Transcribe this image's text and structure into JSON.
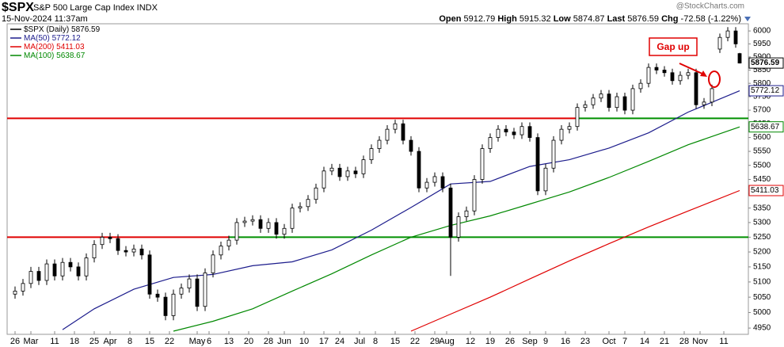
{
  "chart_data": {
    "type": "candlestick",
    "title": "$SPX",
    "subtitle": "S&P 500 Large Cap Index INDX",
    "date": "15-Nov-2024 11:37am",
    "watermark": "@StockCharts.com",
    "quote": {
      "labels": [
        "Open",
        "High",
        "Low",
        "Last",
        "Chg"
      ],
      "values": [
        5912.79,
        5915.32,
        5874.87,
        5876.59,
        -72.58
      ],
      "change_percent_label": "(-1.22%)"
    },
    "annotation": "Gap up",
    "log_scale": true,
    "grid": false,
    "xlim": [
      -2,
      185.2
    ],
    "ylim": [
      4930,
      6028
    ],
    "yticks": [
      4950,
      5000,
      5050,
      5100,
      5150,
      5200,
      5250,
      5300,
      5350,
      5400,
      5450,
      5500,
      5550,
      5600,
      5650,
      5700,
      5750,
      5800,
      5850,
      5900,
      5950,
      6000
    ],
    "xticks": [
      {
        "value": 0,
        "label": "26"
      },
      {
        "value": 4,
        "label": "Mar"
      },
      {
        "value": 10,
        "label": "11"
      },
      {
        "value": 15,
        "label": "18"
      },
      {
        "value": 20,
        "label": "25"
      },
      {
        "value": 24,
        "label": "Apr"
      },
      {
        "value": 29,
        "label": "8"
      },
      {
        "value": 34,
        "label": "15"
      },
      {
        "value": 39,
        "label": "22"
      },
      {
        "value": 46,
        "label": "May"
      },
      {
        "value": 49,
        "label": "6"
      },
      {
        "value": 54,
        "label": "13"
      },
      {
        "value": 59,
        "label": "20"
      },
      {
        "value": 64,
        "label": "28"
      },
      {
        "value": 68,
        "label": "Jun"
      },
      {
        "value": 73,
        "label": "10"
      },
      {
        "value": 78,
        "label": "17"
      },
      {
        "value": 82,
        "label": "24"
      },
      {
        "value": 87,
        "label": "Jul"
      },
      {
        "value": 91,
        "label": "8"
      },
      {
        "value": 96,
        "label": "15"
      },
      {
        "value": 101,
        "label": "22"
      },
      {
        "value": 106,
        "label": "29"
      },
      {
        "value": 109,
        "label": "Aug"
      },
      {
        "value": 115,
        "label": "12"
      },
      {
        "value": 120,
        "label": "19"
      },
      {
        "value": 125,
        "label": "26"
      },
      {
        "value": 130,
        "label": "Sep"
      },
      {
        "value": 134,
        "label": "9"
      },
      {
        "value": 139,
        "label": "16"
      },
      {
        "value": 144,
        "label": "23"
      },
      {
        "value": 150,
        "label": "Oct"
      },
      {
        "value": 154,
        "label": "7"
      },
      {
        "value": 159,
        "label": "14"
      },
      {
        "value": 164,
        "label": "21"
      },
      {
        "value": 169,
        "label": "28"
      },
      {
        "value": 173,
        "label": "Nov"
      },
      {
        "value": 179,
        "label": "11"
      }
    ],
    "price": {
      "name": "$SPX (Daily)",
      "color": "#000000",
      "x": [
        0,
        2,
        4,
        6,
        8,
        10,
        12,
        14,
        16,
        18,
        20,
        22,
        24,
        26,
        28,
        30,
        32,
        34,
        36,
        38,
        40,
        42,
        44,
        46,
        48,
        50,
        52,
        54,
        56,
        58,
        60,
        62,
        64,
        66,
        68,
        70,
        72,
        74,
        76,
        78,
        80,
        82,
        84,
        86,
        88,
        90,
        92,
        94,
        96,
        98,
        100,
        102,
        104,
        106,
        108,
        110,
        112,
        114,
        116,
        118,
        120,
        122,
        124,
        126,
        128,
        130,
        132,
        134,
        136,
        138,
        140,
        142,
        144,
        146,
        148,
        150,
        152,
        154,
        156,
        158,
        160,
        162,
        164,
        166,
        168,
        170,
        172,
        174,
        176,
        178,
        180,
        182,
        183
      ],
      "open": [
        5060,
        5070,
        5095,
        5135,
        5105,
        5160,
        5120,
        5165,
        5150,
        5120,
        5180,
        5225,
        5250,
        5245,
        5205,
        5200,
        5210,
        5190,
        5060,
        5050,
        4990,
        5060,
        5080,
        5110,
        5020,
        5130,
        5190,
        5220,
        5240,
        5300,
        5305,
        5310,
        5280,
        5300,
        5260,
        5280,
        5350,
        5355,
        5380,
        5420,
        5480,
        5490,
        5460,
        5480,
        5470,
        5520,
        5560,
        5590,
        5630,
        5650,
        5590,
        5550,
        5420,
        5440,
        5460,
        5420,
        5250,
        5320,
        5340,
        5450,
        5560,
        5600,
        5630,
        5620,
        5610,
        5640,
        5600,
        5410,
        5490,
        5590,
        5630,
        5640,
        5710,
        5720,
        5745,
        5760,
        5710,
        5750,
        5700,
        5780,
        5800,
        5860,
        5850,
        5840,
        5810,
        5830,
        5840,
        5720,
        5730,
        5930,
        5975,
        6000,
        5912.79
      ],
      "high": [
        5085,
        5110,
        5150,
        5150,
        5175,
        5175,
        5180,
        5180,
        5165,
        5195,
        5240,
        5265,
        5265,
        5260,
        5220,
        5225,
        5225,
        5205,
        5075,
        5065,
        5075,
        5095,
        5125,
        5125,
        5145,
        5205,
        5235,
        5255,
        5315,
        5320,
        5325,
        5325,
        5315,
        5315,
        5295,
        5365,
        5370,
        5395,
        5435,
        5495,
        5505,
        5505,
        5495,
        5495,
        5535,
        5575,
        5605,
        5645,
        5665,
        5665,
        5605,
        5565,
        5455,
        5475,
        5475,
        5435,
        5335,
        5355,
        5465,
        5575,
        5615,
        5645,
        5645,
        5635,
        5655,
        5655,
        5615,
        5505,
        5605,
        5645,
        5655,
        5725,
        5735,
        5760,
        5775,
        5775,
        5765,
        5765,
        5795,
        5815,
        5875,
        5875,
        5865,
        5855,
        5845,
        5855,
        5855,
        5745,
        5795,
        5990,
        6015,
        6015,
        5915.32
      ],
      "low": [
        5045,
        5055,
        5080,
        5090,
        5090,
        5105,
        5105,
        5135,
        5105,
        5105,
        5165,
        5210,
        5230,
        5190,
        5185,
        5185,
        5175,
        5045,
        5035,
        4975,
        4975,
        5045,
        5065,
        5005,
        5005,
        5115,
        5175,
        5205,
        5225,
        5285,
        5290,
        5265,
        5265,
        5245,
        5245,
        5265,
        5335,
        5340,
        5365,
        5405,
        5465,
        5445,
        5445,
        5455,
        5455,
        5505,
        5545,
        5575,
        5615,
        5575,
        5535,
        5405,
        5405,
        5425,
        5405,
        5120,
        5235,
        5305,
        5325,
        5435,
        5545,
        5585,
        5605,
        5595,
        5595,
        5585,
        5395,
        5395,
        5475,
        5575,
        5615,
        5625,
        5695,
        5705,
        5730,
        5695,
        5695,
        5685,
        5685,
        5765,
        5785,
        5835,
        5825,
        5795,
        5795,
        5815,
        5705,
        5705,
        5715,
        5915,
        5960,
        5935,
        5874.87
      ],
      "close": [
        5070,
        5095,
        5135,
        5105,
        5160,
        5120,
        5165,
        5150,
        5120,
        5180,
        5225,
        5250,
        5245,
        5205,
        5200,
        5210,
        5190,
        5060,
        5050,
        4990,
        5060,
        5080,
        5110,
        5020,
        5130,
        5190,
        5220,
        5240,
        5300,
        5305,
        5310,
        5280,
        5300,
        5260,
        5280,
        5350,
        5355,
        5380,
        5420,
        5480,
        5490,
        5460,
        5480,
        5470,
        5520,
        5560,
        5590,
        5630,
        5650,
        5590,
        5550,
        5420,
        5440,
        5460,
        5420,
        5250,
        5320,
        5340,
        5450,
        5560,
        5600,
        5630,
        5620,
        5610,
        5640,
        5600,
        5410,
        5490,
        5590,
        5630,
        5640,
        5710,
        5720,
        5745,
        5760,
        5710,
        5750,
        5700,
        5780,
        5800,
        5860,
        5850,
        5840,
        5810,
        5830,
        5840,
        5720,
        5730,
        5780,
        5975,
        6000,
        5950,
        5876.59
      ]
    },
    "moving_averages": [
      {
        "name": "MA(50)",
        "color": "#1c1c8c",
        "x": [
          12,
          20,
          30,
          40,
          50,
          60,
          70,
          80,
          90,
          100,
          110,
          120,
          130,
          140,
          150,
          160,
          170,
          183
        ],
        "values": [
          4945,
          5012,
          5076,
          5115,
          5125,
          5154,
          5167,
          5207,
          5274,
          5352,
          5434,
          5443,
          5496,
          5520,
          5562,
          5617,
          5693,
          5772.12
        ]
      },
      {
        "name": "MA(200)",
        "color": "#e00000",
        "x": [
          100,
          110,
          120,
          130,
          140,
          150,
          160,
          170,
          183
        ],
        "values": [
          4940,
          4995,
          5050,
          5110,
          5170,
          5228,
          5285,
          5340,
          5411.03
        ]
      },
      {
        "name": "MA(100)",
        "color": "#008800",
        "x": [
          40,
          50,
          60,
          70,
          80,
          90,
          100,
          110,
          120,
          130,
          140,
          150,
          160,
          170,
          183
        ],
        "values": [
          4940,
          4972,
          5012,
          5070,
          5127,
          5190,
          5250,
          5290,
          5323,
          5364,
          5406,
          5457,
          5514,
          5574,
          5638.67
        ]
      }
    ],
    "levels": [
      {
        "value": 5670,
        "segments": [
          {
            "x": [
              -2,
              142
            ],
            "color": "#e00000"
          },
          {
            "x": [
              142,
              185.2
            ],
            "color": "#009000"
          }
        ]
      },
      {
        "value": 5250,
        "segments": [
          {
            "x": [
              -2,
              54
            ],
            "color": "#e00000"
          },
          {
            "x": [
              54,
              185.2
            ],
            "color": "#009000"
          }
        ]
      }
    ]
  }
}
